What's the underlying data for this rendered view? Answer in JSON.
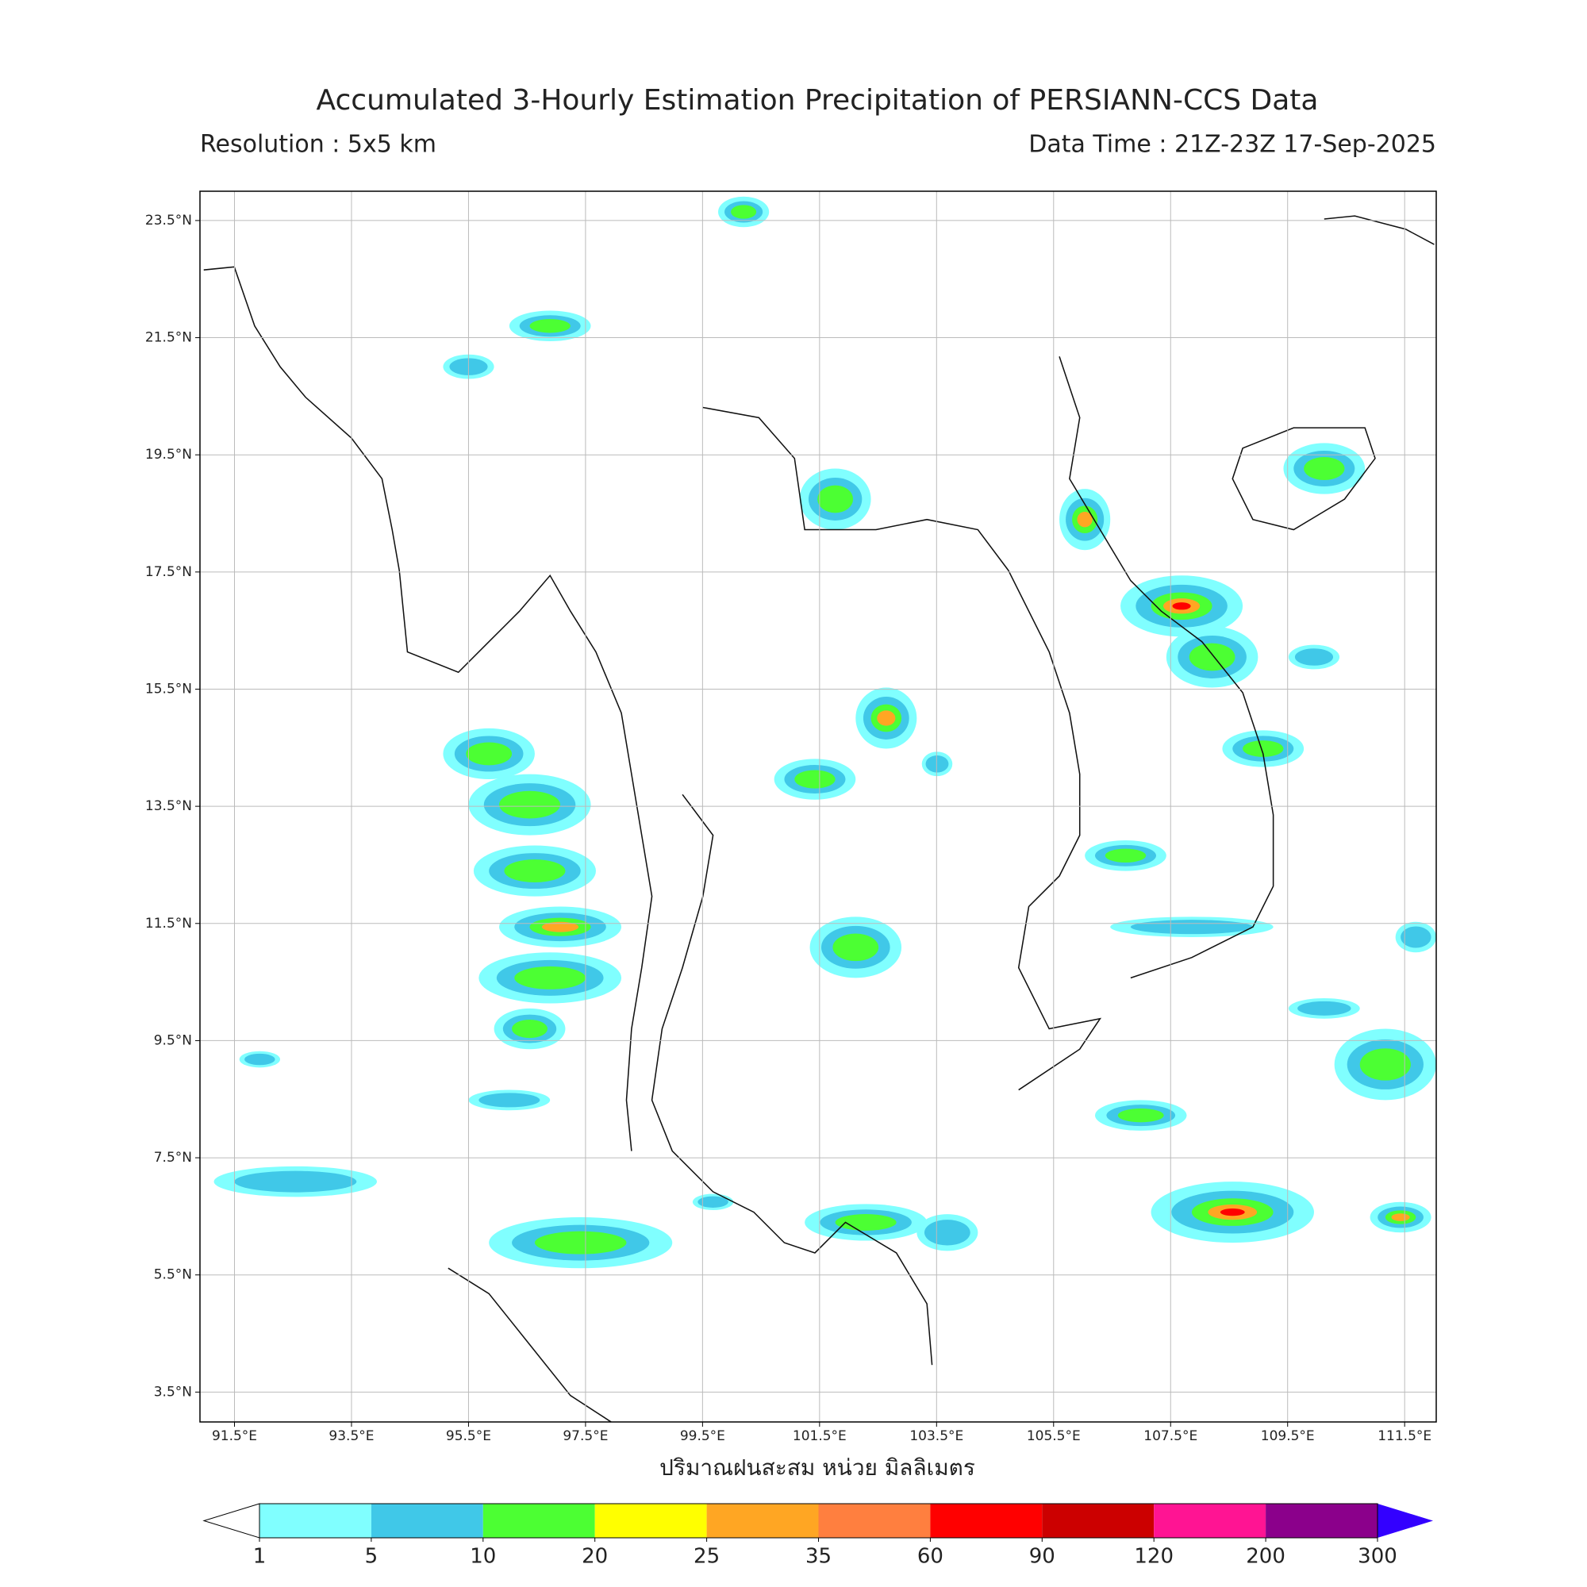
{
  "chart_data": {
    "type": "map",
    "title": "Accumulated 3-Hourly Estimation Precipitation of PERSIANN-CCS Data",
    "subtitle_left": "Resolution : 5x5 km",
    "subtitle_right": "Data Time : 21Z-23Z 17-Sep-2025",
    "xlabel": "ปริมาณฝนสะสม หน่วย มิลลิเมตร",
    "xlim": [
      90.91,
      112.04
    ],
    "ylim": [
      2.99,
      24.0
    ],
    "xticks": [
      {
        "value": 91.5,
        "label": "91.5°E"
      },
      {
        "value": 93.5,
        "label": "93.5°E"
      },
      {
        "value": 95.5,
        "label": "95.5°E"
      },
      {
        "value": 97.5,
        "label": "97.5°E"
      },
      {
        "value": 99.5,
        "label": "99.5°E"
      },
      {
        "value": 101.5,
        "label": "101.5°E"
      },
      {
        "value": 103.5,
        "label": "103.5°E"
      },
      {
        "value": 105.5,
        "label": "105.5°E"
      },
      {
        "value": 107.5,
        "label": "107.5°E"
      },
      {
        "value": 109.5,
        "label": "109.5°E"
      },
      {
        "value": 111.5,
        "label": "111.5°E"
      }
    ],
    "yticks": [
      {
        "value": 3.5,
        "label": "3.5°N"
      },
      {
        "value": 5.5,
        "label": "5.5°N"
      },
      {
        "value": 7.5,
        "label": "7.5°N"
      },
      {
        "value": 9.5,
        "label": "9.5°N"
      },
      {
        "value": 11.5,
        "label": "11.5°N"
      },
      {
        "value": 13.5,
        "label": "13.5°N"
      },
      {
        "value": 15.5,
        "label": "15.5°N"
      },
      {
        "value": 17.5,
        "label": "17.5°N"
      },
      {
        "value": 19.5,
        "label": "19.5°N"
      },
      {
        "value": 21.5,
        "label": "21.5°N"
      },
      {
        "value": 23.5,
        "label": "23.5°N"
      }
    ],
    "grid": true,
    "colorbar": {
      "ticks": [
        1,
        5,
        10,
        20,
        25,
        35,
        60,
        90,
        120,
        200,
        300
      ],
      "colors": [
        "#80ffff",
        "#40c8e8",
        "#4cff33",
        "#ffff00",
        "#ffa623",
        "#ff7f3f",
        "#ff0000",
        "#cc0000",
        "#ff1493",
        "#8b008b"
      ],
      "under_color": "#ffffff",
      "over_color": "#3300ff"
    }
  }
}
